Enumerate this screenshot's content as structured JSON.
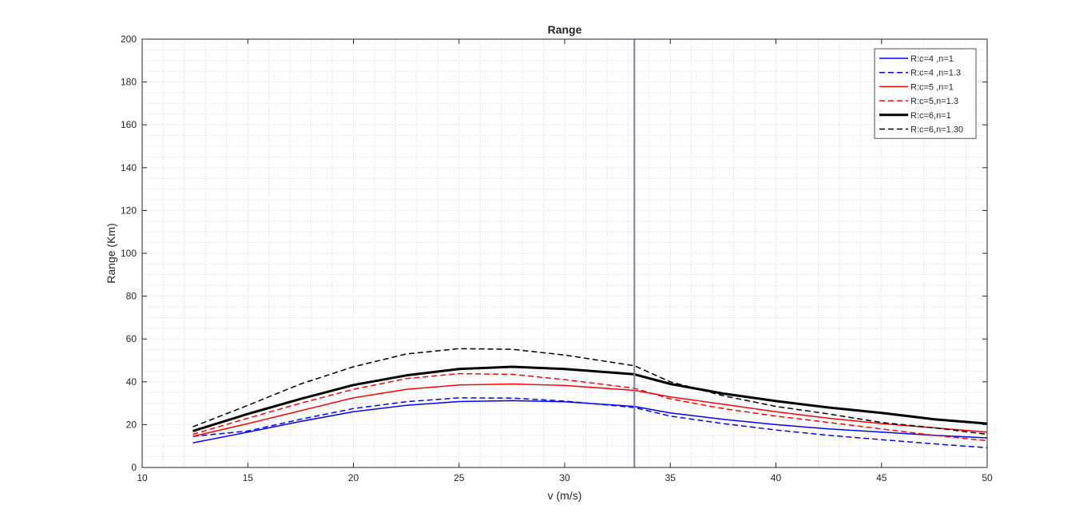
{
  "chart_data": {
    "type": "line",
    "title": "Range",
    "xlabel": "v (m/s)",
    "ylabel": "Range (Km)",
    "xlim": [
      10,
      50
    ],
    "ylim": [
      0,
      200
    ],
    "xticks": [
      10,
      15,
      20,
      25,
      30,
      35,
      40,
      45,
      50
    ],
    "yticks": [
      0,
      20,
      40,
      60,
      80,
      100,
      120,
      140,
      160,
      180,
      200
    ],
    "grid": "minor dotted",
    "legend_position": "top-right",
    "vertical_marker_x": 33.3,
    "series": [
      {
        "name": "R:c=4 ,n=1",
        "color": "#0000ff",
        "dash": "solid",
        "width": 1.5,
        "x": [
          12.4,
          15,
          17.5,
          20,
          22.5,
          25,
          27.5,
          30,
          33.3,
          35,
          37.5,
          40,
          42.5,
          45,
          47.5,
          50
        ],
        "y": [
          11.5,
          16.5,
          21.5,
          26,
          29,
          30.8,
          31.2,
          30.7,
          28.5,
          25.5,
          22.5,
          20,
          18,
          16.5,
          15,
          13.8
        ]
      },
      {
        "name": "R:c=4 ,n=1.3",
        "color": "#0000ff",
        "dash": "dashed",
        "width": 1.5,
        "x": [
          12.4,
          15,
          17.5,
          20,
          22.5,
          25,
          27.5,
          30,
          33.3,
          35,
          37.5,
          40,
          42.5,
          45,
          47.5,
          50
        ],
        "y": [
          14.5,
          17,
          22.5,
          27.5,
          30.7,
          32.5,
          32.4,
          31,
          28,
          24,
          20.5,
          17.5,
          15,
          13,
          11,
          9.2
        ]
      },
      {
        "name": "R:c=5 ,n=1",
        "color": "#ff0000",
        "dash": "solid",
        "width": 1.5,
        "x": [
          12.4,
          15,
          17.5,
          20,
          22.5,
          25,
          27.5,
          30,
          33.3,
          35,
          37.5,
          40,
          42.5,
          45,
          47.5,
          50
        ],
        "y": [
          14.5,
          20.5,
          26.5,
          32.5,
          36.5,
          38.5,
          39,
          38.3,
          36,
          33,
          29.5,
          26,
          23,
          20.5,
          18.5,
          16.5
        ]
      },
      {
        "name": "R:c=5,n=1.3",
        "color": "#ff0000",
        "dash": "dashed",
        "width": 1.5,
        "x": [
          12.4,
          15,
          17.5,
          20,
          22.5,
          25,
          27.5,
          30,
          33.3,
          35,
          37.5,
          40,
          42.5,
          45,
          47.5,
          50
        ],
        "y": [
          15.5,
          23,
          30,
          36.5,
          41.5,
          43.8,
          43.5,
          41,
          37,
          32,
          27.5,
          24,
          21,
          18,
          15,
          12.5
        ]
      },
      {
        "name": "R:c=6,n=1",
        "color": "#000000",
        "dash": "solid",
        "width": 3,
        "x": [
          12.4,
          15,
          17.5,
          20,
          22.5,
          25,
          27.5,
          30,
          33.3,
          35,
          37.5,
          40,
          42.5,
          45,
          47.5,
          50
        ],
        "y": [
          17,
          25,
          32,
          38.5,
          43,
          46,
          47,
          46,
          43.5,
          39,
          34.5,
          31,
          28,
          25.5,
          22.5,
          20.5
        ]
      },
      {
        "name": "R:c=6,n=1.30",
        "color": "#000000",
        "dash": "dashed",
        "width": 1.5,
        "x": [
          12.4,
          15,
          17.5,
          20,
          22.5,
          25,
          27.5,
          30,
          33.3,
          35,
          37.5,
          40,
          42.5,
          45,
          47.5,
          50
        ],
        "y": [
          19,
          29,
          39,
          47,
          53,
          55.5,
          55.2,
          52.5,
          47.5,
          40,
          33.5,
          28.5,
          25,
          21,
          18.5,
          15.5
        ]
      }
    ]
  }
}
